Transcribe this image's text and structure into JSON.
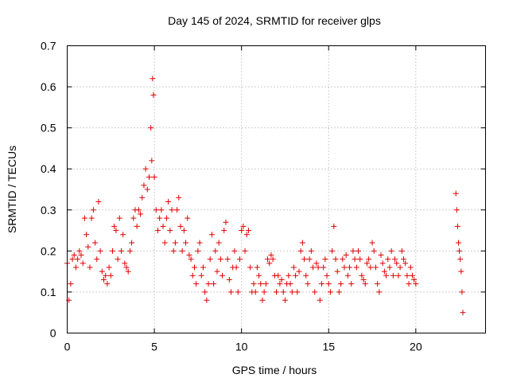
{
  "chart_data": {
    "type": "scatter",
    "title": "Day 145 of 2024, SRMTID for receiver glps",
    "xlabel": "GPS time / hours",
    "ylabel": "SRMTID / TECUs",
    "xlim": [
      0,
      24
    ],
    "ylim": [
      0,
      0.7
    ],
    "xticks": [
      0,
      5,
      10,
      15,
      20
    ],
    "xtick_labels": [
      "0",
      "5",
      "10",
      "15",
      "20"
    ],
    "yticks": [
      0,
      0.1,
      0.2,
      0.3,
      0.4,
      0.5,
      0.6,
      0.7
    ],
    "ytick_labels": [
      "0",
      "0.1",
      "0.2",
      "0.3",
      "0.4",
      "0.5",
      "0.6",
      "0.7"
    ],
    "grid": true,
    "marker": "+",
    "color": "#e00000",
    "series": [
      {
        "name": "SRMTID",
        "x": [
          0.0,
          0.1,
          0.2,
          0.3,
          0.4,
          0.5,
          0.6,
          0.7,
          0.8,
          0.9,
          1.0,
          1.1,
          1.2,
          1.3,
          1.4,
          1.5,
          1.6,
          1.7,
          1.8,
          1.9,
          2.0,
          2.1,
          2.2,
          2.3,
          2.4,
          2.5,
          2.6,
          2.7,
          2.8,
          2.9,
          3.0,
          3.1,
          3.2,
          3.3,
          3.4,
          3.5,
          3.6,
          3.7,
          3.8,
          3.9,
          4.0,
          4.1,
          4.2,
          4.3,
          4.4,
          4.5,
          4.6,
          4.7,
          4.8,
          4.85,
          4.9,
          4.95,
          5.0,
          5.1,
          5.2,
          5.3,
          5.4,
          5.5,
          5.6,
          5.7,
          5.8,
          5.9,
          6.0,
          6.1,
          6.2,
          6.3,
          6.4,
          6.5,
          6.6,
          6.7,
          6.8,
          6.9,
          7.0,
          7.1,
          7.2,
          7.3,
          7.4,
          7.5,
          7.6,
          7.7,
          7.8,
          7.9,
          8.0,
          8.1,
          8.2,
          8.3,
          8.4,
          8.5,
          8.6,
          8.7,
          8.8,
          8.9,
          9.0,
          9.1,
          9.2,
          9.3,
          9.4,
          9.5,
          9.6,
          9.7,
          9.8,
          9.9,
          10.0,
          10.1,
          10.2,
          10.3,
          10.4,
          10.5,
          10.6,
          10.7,
          10.8,
          10.9,
          11.0,
          11.1,
          11.2,
          11.3,
          11.4,
          11.5,
          11.6,
          11.7,
          11.8,
          11.9,
          12.0,
          12.1,
          12.2,
          12.3,
          12.4,
          12.5,
          12.6,
          12.7,
          12.8,
          12.9,
          13.0,
          13.1,
          13.2,
          13.3,
          13.4,
          13.5,
          13.6,
          13.7,
          13.8,
          13.9,
          14.0,
          14.1,
          14.2,
          14.3,
          14.4,
          14.5,
          14.6,
          14.7,
          14.8,
          14.9,
          15.0,
          15.1,
          15.2,
          15.3,
          15.4,
          15.5,
          15.6,
          15.7,
          15.8,
          15.9,
          16.0,
          16.1,
          16.2,
          16.3,
          16.4,
          16.5,
          16.6,
          16.7,
          16.8,
          16.9,
          17.0,
          17.1,
          17.2,
          17.3,
          17.4,
          17.5,
          17.6,
          17.7,
          17.8,
          17.9,
          18.0,
          18.1,
          18.2,
          18.3,
          18.4,
          18.5,
          18.6,
          18.7,
          18.8,
          18.9,
          19.0,
          19.1,
          19.2,
          19.3,
          19.4,
          19.5,
          19.6,
          19.7,
          19.8,
          19.9,
          20.0,
          22.3,
          22.35,
          22.4,
          22.45,
          22.5,
          22.55,
          22.6,
          22.65,
          22.7
        ],
        "y": [
          0.17,
          0.08,
          0.12,
          0.18,
          0.19,
          0.16,
          0.18,
          0.2,
          0.19,
          0.17,
          0.28,
          0.24,
          0.21,
          0.16,
          0.28,
          0.3,
          0.22,
          0.18,
          0.32,
          0.2,
          0.15,
          0.13,
          0.14,
          0.12,
          0.16,
          0.14,
          0.2,
          0.26,
          0.25,
          0.18,
          0.28,
          0.2,
          0.24,
          0.17,
          0.16,
          0.15,
          0.2,
          0.22,
          0.28,
          0.3,
          0.26,
          0.3,
          0.29,
          0.33,
          0.36,
          0.4,
          0.35,
          0.38,
          0.5,
          0.42,
          0.62,
          0.58,
          0.38,
          0.3,
          0.25,
          0.28,
          0.3,
          0.26,
          0.22,
          0.28,
          0.32,
          0.25,
          0.3,
          0.2,
          0.22,
          0.3,
          0.33,
          0.26,
          0.2,
          0.25,
          0.22,
          0.28,
          0.19,
          0.18,
          0.14,
          0.16,
          0.12,
          0.2,
          0.22,
          0.14,
          0.16,
          0.1,
          0.08,
          0.12,
          0.18,
          0.24,
          0.12,
          0.2,
          0.15,
          0.22,
          0.18,
          0.14,
          0.25,
          0.27,
          0.18,
          0.13,
          0.1,
          0.16,
          0.2,
          0.16,
          0.1,
          0.18,
          0.25,
          0.26,
          0.2,
          0.24,
          0.25,
          0.16,
          0.1,
          0.12,
          0.1,
          0.16,
          0.14,
          0.12,
          0.08,
          0.1,
          0.12,
          0.18,
          0.17,
          0.19,
          0.18,
          0.14,
          0.1,
          0.14,
          0.12,
          0.13,
          0.1,
          0.08,
          0.12,
          0.14,
          0.12,
          0.1,
          0.16,
          0.14,
          0.1,
          0.15,
          0.2,
          0.22,
          0.18,
          0.14,
          0.12,
          0.18,
          0.2,
          0.16,
          0.1,
          0.17,
          0.16,
          0.08,
          0.12,
          0.16,
          0.18,
          0.14,
          0.12,
          0.1,
          0.2,
          0.26,
          0.18,
          0.15,
          0.1,
          0.12,
          0.18,
          0.16,
          0.19,
          0.14,
          0.16,
          0.12,
          0.2,
          0.18,
          0.16,
          0.2,
          0.18,
          0.14,
          0.13,
          0.12,
          0.17,
          0.18,
          0.16,
          0.22,
          0.2,
          0.16,
          0.12,
          0.1,
          0.19,
          0.17,
          0.15,
          0.14,
          0.18,
          0.16,
          0.2,
          0.14,
          0.18,
          0.17,
          0.14,
          0.16,
          0.2,
          0.18,
          0.17,
          0.14,
          0.12,
          0.16,
          0.14,
          0.13,
          0.12,
          0.34,
          0.3,
          0.26,
          0.22,
          0.2,
          0.18,
          0.15,
          0.1,
          0.05
        ]
      }
    ]
  }
}
